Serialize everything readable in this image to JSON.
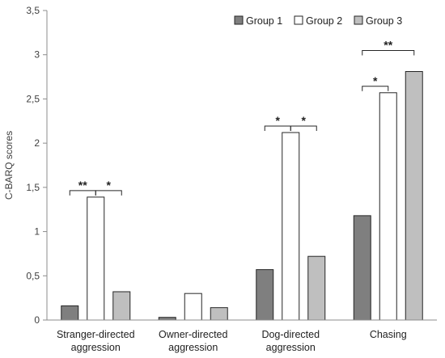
{
  "chart_data": {
    "type": "bar",
    "title": "",
    "xlabel": "",
    "ylabel": "C-BARQ scores",
    "ylim": [
      0,
      3.5
    ],
    "yticks": [
      "0",
      "0,5",
      "1",
      "1,5",
      "2",
      "2,5",
      "3",
      "3,5"
    ],
    "ytick_values": [
      0,
      0.5,
      1,
      1.5,
      2,
      2.5,
      3,
      3.5
    ],
    "categories": [
      [
        "Stranger-directed",
        "aggression"
      ],
      [
        "Owner-directed",
        "aggression"
      ],
      [
        "Dog-directed",
        "aggression"
      ],
      [
        "Chasing"
      ]
    ],
    "series": [
      {
        "name": "Group 1",
        "color": "#7f7f7f",
        "values": [
          0.16,
          0.03,
          0.57,
          1.18
        ]
      },
      {
        "name": "Group 2",
        "color": "#ffffff",
        "values": [
          1.39,
          0.3,
          2.12,
          2.57
        ]
      },
      {
        "name": "Group 3",
        "color": "#bfbfbf",
        "values": [
          0.32,
          0.14,
          0.72,
          2.81
        ]
      }
    ],
    "legend": "top-right",
    "grid": false,
    "significance": [
      {
        "category": 0,
        "from": 0,
        "to": 1,
        "label": "**"
      },
      {
        "category": 0,
        "from": 1,
        "to": 2,
        "label": "*"
      },
      {
        "category": 2,
        "from": 0,
        "to": 1,
        "label": "*"
      },
      {
        "category": 2,
        "from": 1,
        "to": 2,
        "label": "*"
      },
      {
        "category": 3,
        "from": 0,
        "to": 1,
        "label": "*"
      },
      {
        "category": 3,
        "from": 0,
        "to": 2,
        "label": "**"
      }
    ]
  }
}
